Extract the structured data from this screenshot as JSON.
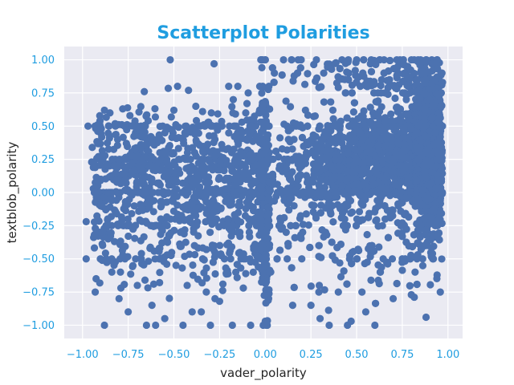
{
  "chart_data": {
    "type": "scatter",
    "title": "Scatterplot Polarities",
    "xlabel": "vader_polarity",
    "ylabel": "textblob_polarity",
    "xlim": [
      -1.1,
      1.08
    ],
    "ylim": [
      -1.1,
      1.1
    ],
    "xticks": [
      -1.0,
      -0.75,
      -0.5,
      -0.25,
      0.0,
      0.25,
      0.5,
      0.75,
      1.0
    ],
    "yticks": [
      -1.0,
      -0.75,
      -0.5,
      -0.25,
      0.0,
      0.25,
      0.5,
      0.75,
      1.0
    ],
    "xtick_labels": [
      "−1.00",
      "−0.75",
      "−0.50",
      "−0.25",
      "0.00",
      "0.25",
      "0.50",
      "0.75",
      "1.00"
    ],
    "ytick_labels": [
      "−1.00",
      "−0.75",
      "−0.50",
      "−0.25",
      "0.00",
      "0.25",
      "0.50",
      "0.75",
      "1.00"
    ],
    "grid": true,
    "colors": {
      "points": "#4c72b0",
      "plot_background": "#eaeaf2",
      "grid": "#ffffff",
      "title": "#1f9de0",
      "ticks": "#1f9de0"
    },
    "points": [
      [
        -0.98,
        -0.5
      ],
      [
        -0.98,
        -0.22
      ],
      [
        -0.97,
        0.5
      ],
      [
        -0.95,
        0.23
      ],
      [
        -0.93,
        -0.27
      ],
      [
        -0.9,
        -0.1
      ],
      [
        -0.88,
        -1.0
      ],
      [
        -0.88,
        0.62
      ],
      [
        -0.86,
        -0.35
      ],
      [
        -0.85,
        0.6
      ],
      [
        -0.84,
        -0.5
      ],
      [
        -0.82,
        0.5
      ],
      [
        -0.8,
        -0.8
      ],
      [
        -0.79,
        -0.72
      ],
      [
        -0.78,
        0.63
      ],
      [
        -0.76,
        0.37
      ],
      [
        -0.75,
        -0.9
      ],
      [
        -0.72,
        0.5
      ],
      [
        -0.7,
        -0.7
      ],
      [
        -0.68,
        0.42
      ],
      [
        -0.65,
        -1.0
      ],
      [
        -0.62,
        -0.85
      ],
      [
        -0.6,
        -1.0
      ],
      [
        -0.58,
        -0.42
      ],
      [
        -0.55,
        -0.95
      ],
      [
        -0.52,
        1.0
      ],
      [
        -0.5,
        0.62
      ],
      [
        -0.48,
        0.8
      ],
      [
        -0.45,
        -1.0
      ],
      [
        -0.42,
        0.77
      ],
      [
        -0.4,
        -0.9
      ],
      [
        -0.38,
        0.65
      ],
      [
        -0.35,
        -0.9
      ],
      [
        -0.33,
        0.5
      ],
      [
        -0.3,
        -1.0
      ],
      [
        -0.28,
        0.97
      ],
      [
        -0.25,
        -0.82
      ],
      [
        -0.2,
        0.8
      ],
      [
        -0.18,
        -1.0
      ],
      [
        -0.15,
        0.8
      ],
      [
        -0.12,
        -0.72
      ],
      [
        -0.1,
        0.67
      ],
      [
        -0.08,
        -1.0
      ],
      [
        -0.05,
        0.42
      ],
      [
        -0.03,
        0.8
      ],
      [
        0.0,
        -0.97
      ],
      [
        0.0,
        1.0
      ],
      [
        0.02,
        0.8
      ],
      [
        0.03,
        -0.6
      ],
      [
        0.05,
        0.9
      ],
      [
        0.1,
        1.0
      ],
      [
        0.12,
        -0.5
      ],
      [
        0.15,
        -0.85
      ],
      [
        0.18,
        1.0
      ],
      [
        0.2,
        -0.5
      ],
      [
        0.22,
        0.62
      ],
      [
        0.25,
        -0.85
      ],
      [
        0.28,
        1.0
      ],
      [
        0.3,
        -0.95
      ],
      [
        0.32,
        0.9
      ],
      [
        0.35,
        -1.0
      ],
      [
        0.37,
        0.62
      ],
      [
        0.4,
        -0.75
      ],
      [
        0.42,
        1.0
      ],
      [
        0.45,
        -1.0
      ],
      [
        0.47,
        -0.97
      ],
      [
        0.5,
        1.0
      ],
      [
        0.52,
        0.8
      ],
      [
        0.55,
        -0.9
      ],
      [
        0.58,
        1.0
      ],
      [
        0.6,
        -1.0
      ],
      [
        0.63,
        -0.6
      ],
      [
        0.65,
        1.0
      ],
      [
        0.68,
        0.85
      ],
      [
        0.7,
        -0.8
      ],
      [
        0.72,
        1.0
      ],
      [
        0.75,
        -0.5
      ],
      [
        0.78,
        0.95
      ],
      [
        0.8,
        1.0
      ],
      [
        0.82,
        -0.6
      ],
      [
        0.85,
        1.0
      ],
      [
        0.88,
        -0.94
      ],
      [
        0.9,
        0.7
      ],
      [
        0.92,
        0.65
      ],
      [
        0.95,
        0.6
      ],
      [
        0.97,
        0.83
      ],
      [
        0.95,
        0.25
      ],
      [
        0.93,
        -0.25
      ],
      [
        0.9,
        -0.05
      ],
      [
        0.93,
        0.45
      ]
    ]
  }
}
